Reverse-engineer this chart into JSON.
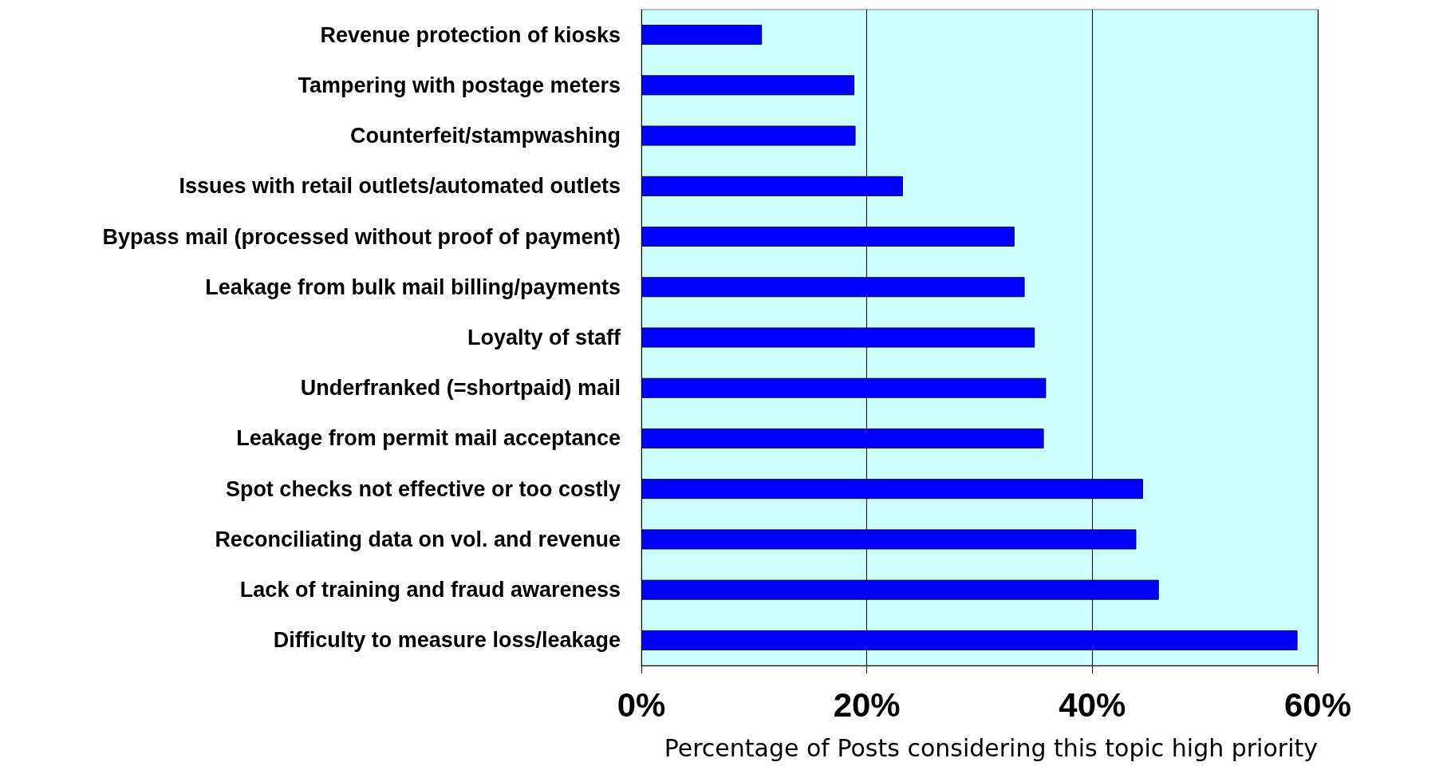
{
  "chart_data": {
    "type": "bar",
    "orientation": "horizontal",
    "xlabel": "Percentage of Posts considering this topic high priority",
    "categories": [
      "Revenue protection of kiosks",
      "Tampering with postage meters",
      "Counterfeit/stampwashing",
      "Issues with retail outlets/automated outlets",
      "Bypass mail (processed without proof of payment)",
      "Leakage from bulk mail billing/payments",
      "Loyalty of staff",
      "Underfranked (=shortpaid) mail",
      "Leakage from permit mail acceptance",
      "Spot checks not effective or too costly",
      "Reconciliating data on vol. and revenue",
      "Lack of training and fraud awareness",
      "Difficulty to measure loss/leakage"
    ],
    "values": [
      10.7,
      18.9,
      19.0,
      23.2,
      33.1,
      34.0,
      34.9,
      35.9,
      35.7,
      44.5,
      43.9,
      45.9,
      58.2
    ],
    "color": "#0000ff",
    "xlim": [
      0,
      60
    ],
    "xticks": [
      {
        "value": 0,
        "label": "0%"
      },
      {
        "value": 20,
        "label": "20%"
      },
      {
        "value": 40,
        "label": "40%"
      },
      {
        "value": 60,
        "label": "60%"
      }
    ],
    "grid": "x"
  }
}
